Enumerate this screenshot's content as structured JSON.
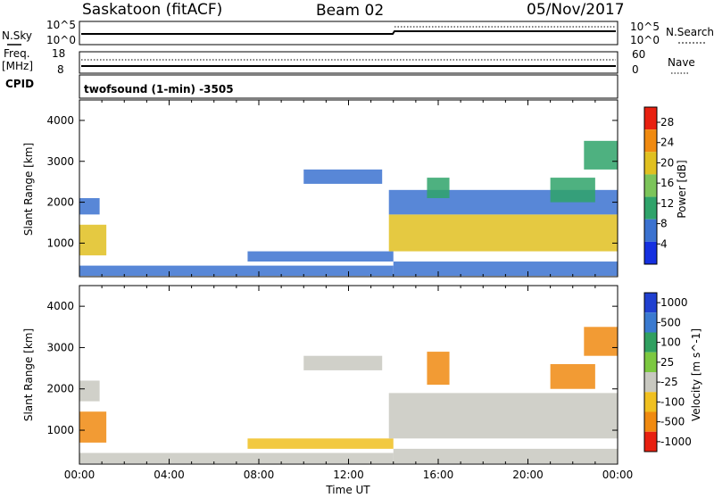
{
  "header": {
    "station": "Saskatoon (fitACF)",
    "beam": "Beam 02",
    "date": "05/Nov/2017"
  },
  "status_panels": {
    "nsky_label": "N.Sky",
    "nsky_ticks": [
      "10^5",
      "10^0"
    ],
    "nsearch_label": "N.Search",
    "freq_label_1": "Freq.",
    "freq_label_2": "[MHz]",
    "freq_ticks": [
      "18",
      "8"
    ],
    "nave_label": "Nave",
    "nave_ticks": [
      "60",
      "0"
    ],
    "cpid_label": "CPID",
    "cpid_text": "twofsound (1-min) -3505"
  },
  "chart_data": [
    {
      "type": "heatmap",
      "name": "power",
      "ylabel": "Slant Range [km]",
      "xlabel": "",
      "xlim": [
        0,
        24
      ],
      "ylim": [
        180,
        4500
      ],
      "yticks": [
        1000,
        2000,
        3000,
        4000
      ],
      "colorbar": {
        "label": "Power [dB]",
        "ticks": [
          4,
          8,
          12,
          16,
          20,
          24,
          28
        ],
        "range": [
          0,
          31
        ],
        "colors": [
          "#1530e0",
          "#3b72d0",
          "#2fa36a",
          "#7cc45a",
          "#e0c020",
          "#f08a10",
          "#e82010"
        ]
      },
      "regions": [
        {
          "t0": 0.0,
          "t1": 1.2,
          "r0": 700,
          "r1": 1450,
          "level": 20
        },
        {
          "t0": 0.0,
          "t1": 0.9,
          "r0": 1700,
          "r1": 2100,
          "level": 8
        },
        {
          "t0": 0.0,
          "t1": 14.0,
          "r0": 200,
          "r1": 450,
          "level": 6
        },
        {
          "t0": 7.5,
          "t1": 14.0,
          "r0": 550,
          "r1": 800,
          "level": 6
        },
        {
          "t0": 10.0,
          "t1": 13.5,
          "r0": 2450,
          "r1": 2800,
          "level": 6
        },
        {
          "t0": 13.8,
          "t1": 24.0,
          "r0": 800,
          "r1": 1700,
          "level": 22
        },
        {
          "t0": 13.8,
          "t1": 24.0,
          "r0": 1700,
          "r1": 2300,
          "level": 8
        },
        {
          "t0": 15.5,
          "t1": 16.5,
          "r0": 2100,
          "r1": 2600,
          "level": 12
        },
        {
          "t0": 21.0,
          "t1": 23.0,
          "r0": 2000,
          "r1": 2600,
          "level": 12
        },
        {
          "t0": 22.5,
          "t1": 24.0,
          "r0": 2800,
          "r1": 3500,
          "level": 12
        },
        {
          "t0": 14.0,
          "t1": 24.0,
          "r0": 200,
          "r1": 550,
          "level": 6
        }
      ]
    },
    {
      "type": "heatmap",
      "name": "velocity",
      "ylabel": "Slant Range [km]",
      "xlabel": "Time UT",
      "xlim": [
        0,
        24
      ],
      "ylim": [
        180,
        4500
      ],
      "xticks": [
        "00:00",
        "04:00",
        "08:00",
        "12:00",
        "16:00",
        "20:00",
        "00:00"
      ],
      "yticks": [
        1000,
        2000,
        3000,
        4000
      ],
      "colorbar": {
        "label": "Velocity [m s^-1]",
        "ticks": [
          "1000",
          "500",
          "100",
          "25",
          "-25",
          "-100",
          "-500",
          "-1000"
        ],
        "colors": [
          "#2040d0",
          "#3a7ad0",
          "#30a060",
          "#7cc840",
          "#c8c8c0",
          "#f0c020",
          "#f08a10",
          "#e82010"
        ]
      },
      "regions": [
        {
          "t0": 0.0,
          "t1": 1.2,
          "r0": 700,
          "r1": 1450,
          "vel": -300
        },
        {
          "t0": 0.0,
          "t1": 0.9,
          "r0": 1700,
          "r1": 2200,
          "vel": 0
        },
        {
          "t0": 0.0,
          "t1": 14.0,
          "r0": 200,
          "r1": 450,
          "vel": 0
        },
        {
          "t0": 7.5,
          "t1": 14.0,
          "r0": 550,
          "r1": 800,
          "vel": -100
        },
        {
          "t0": 10.0,
          "t1": 13.5,
          "r0": 2450,
          "r1": 2800,
          "vel": 0
        },
        {
          "t0": 13.8,
          "t1": 24.0,
          "r0": 800,
          "r1": 1900,
          "vel": 0
        },
        {
          "t0": 15.5,
          "t1": 16.5,
          "r0": 2100,
          "r1": 2900,
          "vel": -300
        },
        {
          "t0": 21.0,
          "t1": 23.0,
          "r0": 2000,
          "r1": 2600,
          "vel": -300
        },
        {
          "t0": 22.5,
          "t1": 24.0,
          "r0": 2800,
          "r1": 3500,
          "vel": -300
        },
        {
          "t0": 14.0,
          "t1": 24.0,
          "r0": 200,
          "r1": 550,
          "vel": 0
        }
      ]
    }
  ]
}
